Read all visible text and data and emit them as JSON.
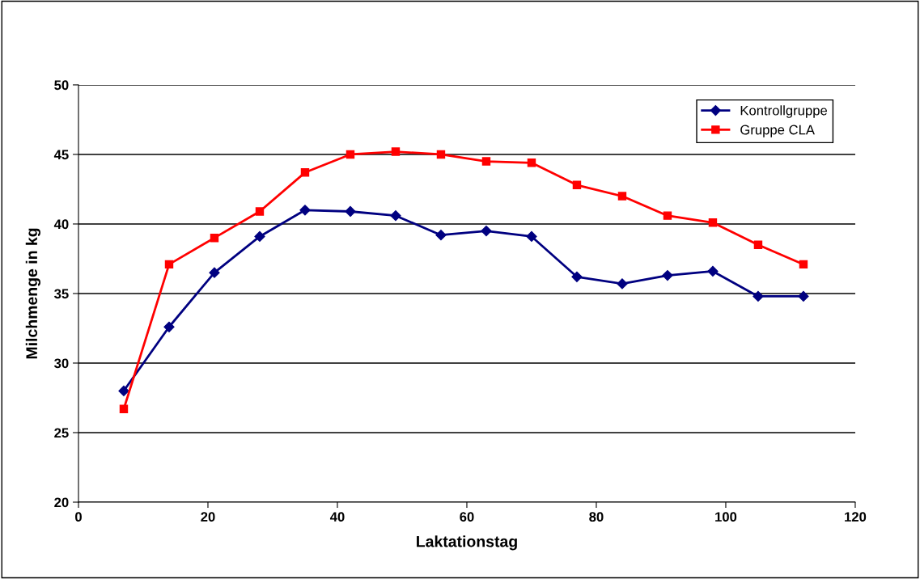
{
  "chart_data": {
    "type": "line",
    "xlabel": "Laktationstag",
    "ylabel": "Milchmenge in kg",
    "x": [
      7,
      14,
      21,
      28,
      35,
      42,
      49,
      56,
      63,
      70,
      77,
      84,
      91,
      98,
      105,
      112
    ],
    "series": [
      {
        "name": "Kontrollgruppe",
        "color": "#000080",
        "marker": "diamond",
        "values": [
          28.0,
          32.6,
          36.5,
          39.1,
          41.0,
          40.9,
          40.6,
          39.2,
          39.5,
          39.1,
          36.2,
          35.7,
          36.3,
          36.6,
          34.8,
          34.8
        ]
      },
      {
        "name": "Gruppe CLA",
        "color": "#ff0000",
        "marker": "square",
        "values": [
          26.7,
          37.1,
          39.0,
          40.9,
          43.7,
          45.0,
          45.2,
          45.0,
          44.5,
          44.4,
          42.8,
          42.0,
          40.6,
          40.1,
          38.5,
          37.1
        ]
      }
    ],
    "xlim": [
      0,
      120
    ],
    "xticks": [
      0,
      20,
      40,
      60,
      80,
      100,
      120
    ],
    "ylim": [
      20,
      50
    ],
    "yticks": [
      20,
      25,
      30,
      35,
      40,
      45,
      50
    ],
    "grid": "y",
    "legend": "top right",
    "line_style": "solid"
  }
}
